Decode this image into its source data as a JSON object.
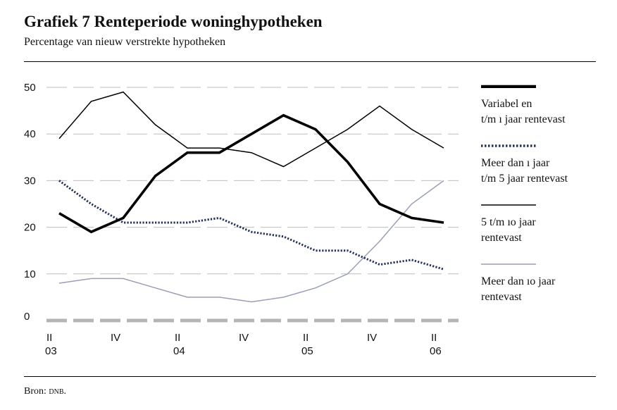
{
  "header": {
    "title": "Grafiek 7  Renteperiode woninghypotheken",
    "subtitle": "Percentage van nieuw verstrekte hypotheken"
  },
  "footer": {
    "source_prefix": "Bron: ",
    "source_name": "dnb."
  },
  "chart_data": {
    "type": "line",
    "title": "Grafiek 7  Renteperiode woninghypotheken",
    "subtitle": "Percentage van nieuw verstrekte hypotheken",
    "ylim": [
      0,
      50
    ],
    "yticks": [
      "0",
      "10",
      "20",
      "30",
      "40",
      "50"
    ],
    "x": [
      "2003-Q2",
      "2003-Q3",
      "2003-Q4",
      "2004-Q1",
      "2004-Q2",
      "2004-Q3",
      "2004-Q4",
      "2005-Q1",
      "2005-Q2",
      "2005-Q3",
      "2005-Q4",
      "2006-Q1",
      "2006-Q2"
    ],
    "xtick_labels": [
      {
        "index": 0,
        "line1": "II",
        "line2": "03"
      },
      {
        "index": 2,
        "line1": "IV",
        "line2": ""
      },
      {
        "index": 4,
        "line1": "II",
        "line2": "04"
      },
      {
        "index": 6,
        "line1": "IV",
        "line2": ""
      },
      {
        "index": 8,
        "line1": "II",
        "line2": "05"
      },
      {
        "index": 10,
        "line1": "IV",
        "line2": ""
      },
      {
        "index": 12,
        "line1": "II",
        "line2": "06"
      }
    ],
    "grid": true,
    "legend_position": "right",
    "series": [
      {
        "name": "Variabel en t/m 1 jaar rentevast",
        "label_lines": [
          "Variabel en",
          "t/m ı jaar rentevast"
        ],
        "values": [
          23,
          19,
          22,
          31,
          36,
          36,
          40,
          44,
          41,
          34,
          25,
          22,
          21
        ],
        "color": "#000000",
        "style": "thick"
      },
      {
        "name": "Meer dan 1 jaar t/m 5 jaar rentevast",
        "label_lines": [
          "Meer dan ı jaar",
          "t/m 5 jaar rentevast"
        ],
        "values": [
          30,
          25,
          21,
          21,
          21,
          22,
          19,
          18,
          15,
          15,
          12,
          13,
          11
        ],
        "color": "#26325a",
        "style": "dotted"
      },
      {
        "name": "5 t/m 10 jaar rentevast",
        "label_lines": [
          "5 t/m ıo jaar",
          "rentevast"
        ],
        "values": [
          39,
          47,
          49,
          42,
          37,
          37,
          36,
          33,
          37,
          41,
          46,
          41,
          37
        ],
        "color": "#000000",
        "style": "thin"
      },
      {
        "name": "Meer dan 10 jaar rentevast",
        "label_lines": [
          "Meer dan ıo jaar",
          "rentevast"
        ],
        "values": [
          8,
          9,
          9,
          7,
          5,
          5,
          4,
          5,
          7,
          10,
          17,
          25,
          30
        ],
        "color": "#9a9eb6",
        "style": "thin"
      }
    ]
  }
}
